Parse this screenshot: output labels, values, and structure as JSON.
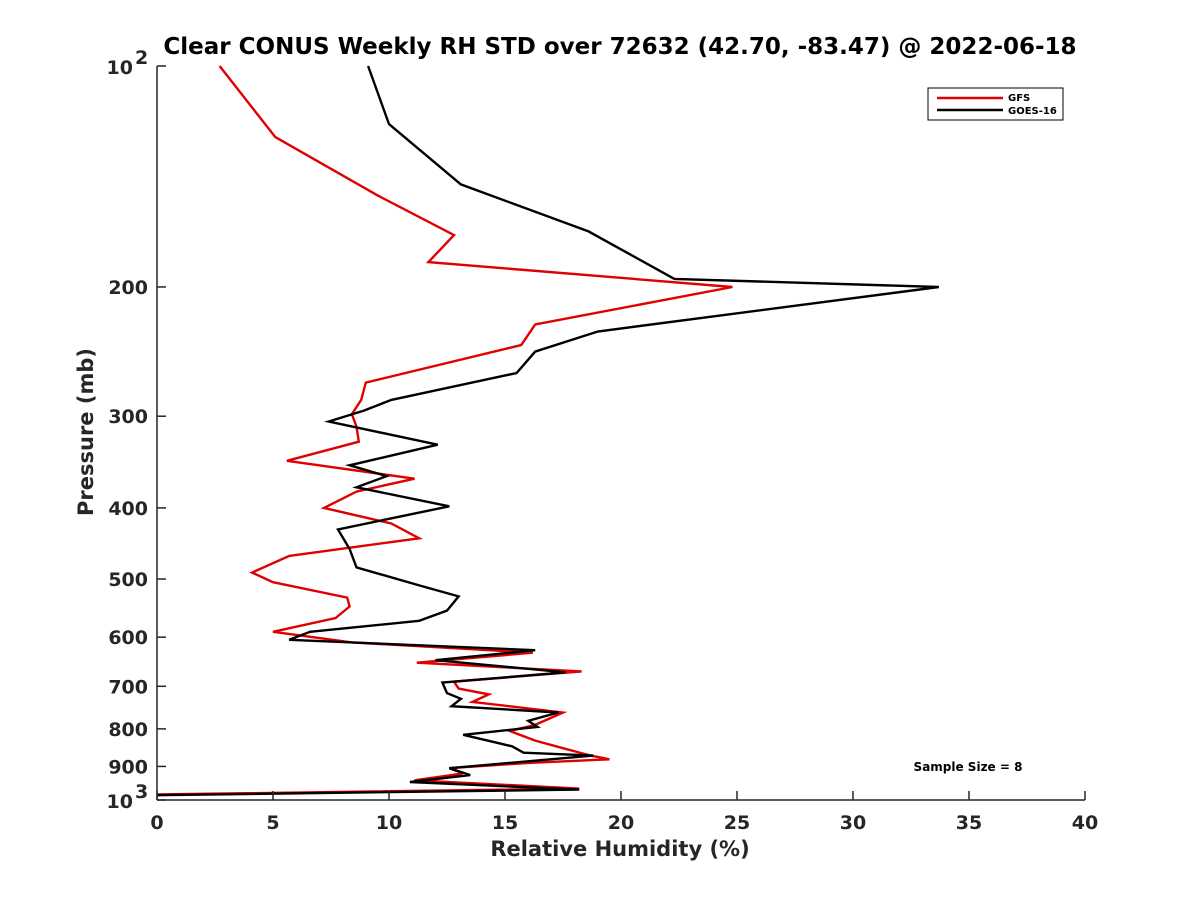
{
  "chart_data": {
    "type": "line",
    "title": "Clear CONUS Weekly RH STD over 72632 (42.70, -83.47) @ 2022-06-18",
    "xlabel": "Relative Humidity (%)",
    "ylabel": "Pressure (mb)",
    "xlim": [
      0,
      40
    ],
    "ylim": [
      100,
      1000
    ],
    "y_scale": "log",
    "y_reversed": true,
    "x_ticks": [
      "0",
      "5",
      "10",
      "15",
      "20",
      "25",
      "30",
      "35",
      "40"
    ],
    "y_ticks": [
      {
        "value": 100,
        "label": "10",
        "sup": "2"
      },
      {
        "value": 200,
        "label": "200",
        "sup": ""
      },
      {
        "value": 300,
        "label": "300",
        "sup": ""
      },
      {
        "value": 400,
        "label": "400",
        "sup": ""
      },
      {
        "value": 500,
        "label": "500",
        "sup": ""
      },
      {
        "value": 600,
        "label": "600",
        "sup": ""
      },
      {
        "value": 700,
        "label": "700",
        "sup": ""
      },
      {
        "value": 800,
        "label": "800",
        "sup": ""
      },
      {
        "value": 900,
        "label": "900",
        "sup": ""
      },
      {
        "value": 1000,
        "label": "10",
        "sup": "3"
      }
    ],
    "grid": false,
    "legend_position": "top-right",
    "annotation": "Sample Size = 8",
    "series": [
      {
        "name": "GFS",
        "color": "#e00000",
        "points": [
          [
            2.7,
            100
          ],
          [
            5.1,
            125
          ],
          [
            9.5,
            150
          ],
          [
            12.8,
            170
          ],
          [
            11.7,
            185
          ],
          [
            24.8,
            200
          ],
          [
            16.3,
            225
          ],
          [
            15.7,
            240
          ],
          [
            9.0,
            270
          ],
          [
            8.8,
            285
          ],
          [
            8.4,
            298
          ],
          [
            8.6,
            310
          ],
          [
            8.7,
            325
          ],
          [
            5.6,
            345
          ],
          [
            11.1,
            365
          ],
          [
            8.6,
            380
          ],
          [
            7.2,
            400
          ],
          [
            10.1,
            420
          ],
          [
            11.3,
            440
          ],
          [
            5.7,
            465
          ],
          [
            4.1,
            490
          ],
          [
            5.0,
            505
          ],
          [
            8.2,
            530
          ],
          [
            8.3,
            545
          ],
          [
            7.7,
            565
          ],
          [
            5.0,
            590
          ],
          [
            8.4,
            610
          ],
          [
            16.2,
            630
          ],
          [
            11.2,
            650
          ],
          [
            18.3,
            668
          ],
          [
            12.8,
            690
          ],
          [
            13.0,
            705
          ],
          [
            14.3,
            718
          ],
          [
            13.6,
            735
          ],
          [
            17.5,
            760
          ],
          [
            16.3,
            790
          ],
          [
            15.2,
            805
          ],
          [
            16.3,
            830
          ],
          [
            17.5,
            850
          ],
          [
            18.7,
            870
          ],
          [
            19.5,
            880
          ],
          [
            16.0,
            890
          ],
          [
            12.6,
            905
          ],
          [
            13.2,
            920
          ],
          [
            11.1,
            940
          ],
          [
            18.2,
            965
          ],
          [
            0.0,
            983
          ]
        ]
      },
      {
        "name": "GOES-16",
        "color": "#000000",
        "points": [
          [
            9.1,
            100
          ],
          [
            10.0,
            120
          ],
          [
            13.1,
            145
          ],
          [
            18.6,
            168
          ],
          [
            22.3,
            195
          ],
          [
            33.7,
            200
          ],
          [
            19.0,
            230
          ],
          [
            16.3,
            245
          ],
          [
            15.5,
            262
          ],
          [
            10.1,
            285
          ],
          [
            8.9,
            295
          ],
          [
            7.4,
            305
          ],
          [
            12.1,
            328
          ],
          [
            8.3,
            350
          ],
          [
            9.9,
            362
          ],
          [
            8.6,
            375
          ],
          [
            12.6,
            398
          ],
          [
            7.8,
            428
          ],
          [
            8.3,
            455
          ],
          [
            8.6,
            482
          ],
          [
            11.3,
            510
          ],
          [
            13.0,
            528
          ],
          [
            12.5,
            552
          ],
          [
            11.3,
            570
          ],
          [
            6.6,
            590
          ],
          [
            5.7,
            605
          ],
          [
            16.3,
            625
          ],
          [
            12.0,
            645
          ],
          [
            17.6,
            670
          ],
          [
            12.3,
            692
          ],
          [
            12.5,
            715
          ],
          [
            13.1,
            728
          ],
          [
            12.7,
            745
          ],
          [
            17.3,
            760
          ],
          [
            16.0,
            780
          ],
          [
            16.4,
            795
          ],
          [
            13.2,
            815
          ],
          [
            15.3,
            845
          ],
          [
            15.8,
            862
          ],
          [
            18.8,
            870
          ],
          [
            12.6,
            905
          ],
          [
            13.5,
            925
          ],
          [
            10.9,
            945
          ],
          [
            18.2,
            968
          ],
          [
            0.0,
            985
          ]
        ]
      }
    ]
  }
}
